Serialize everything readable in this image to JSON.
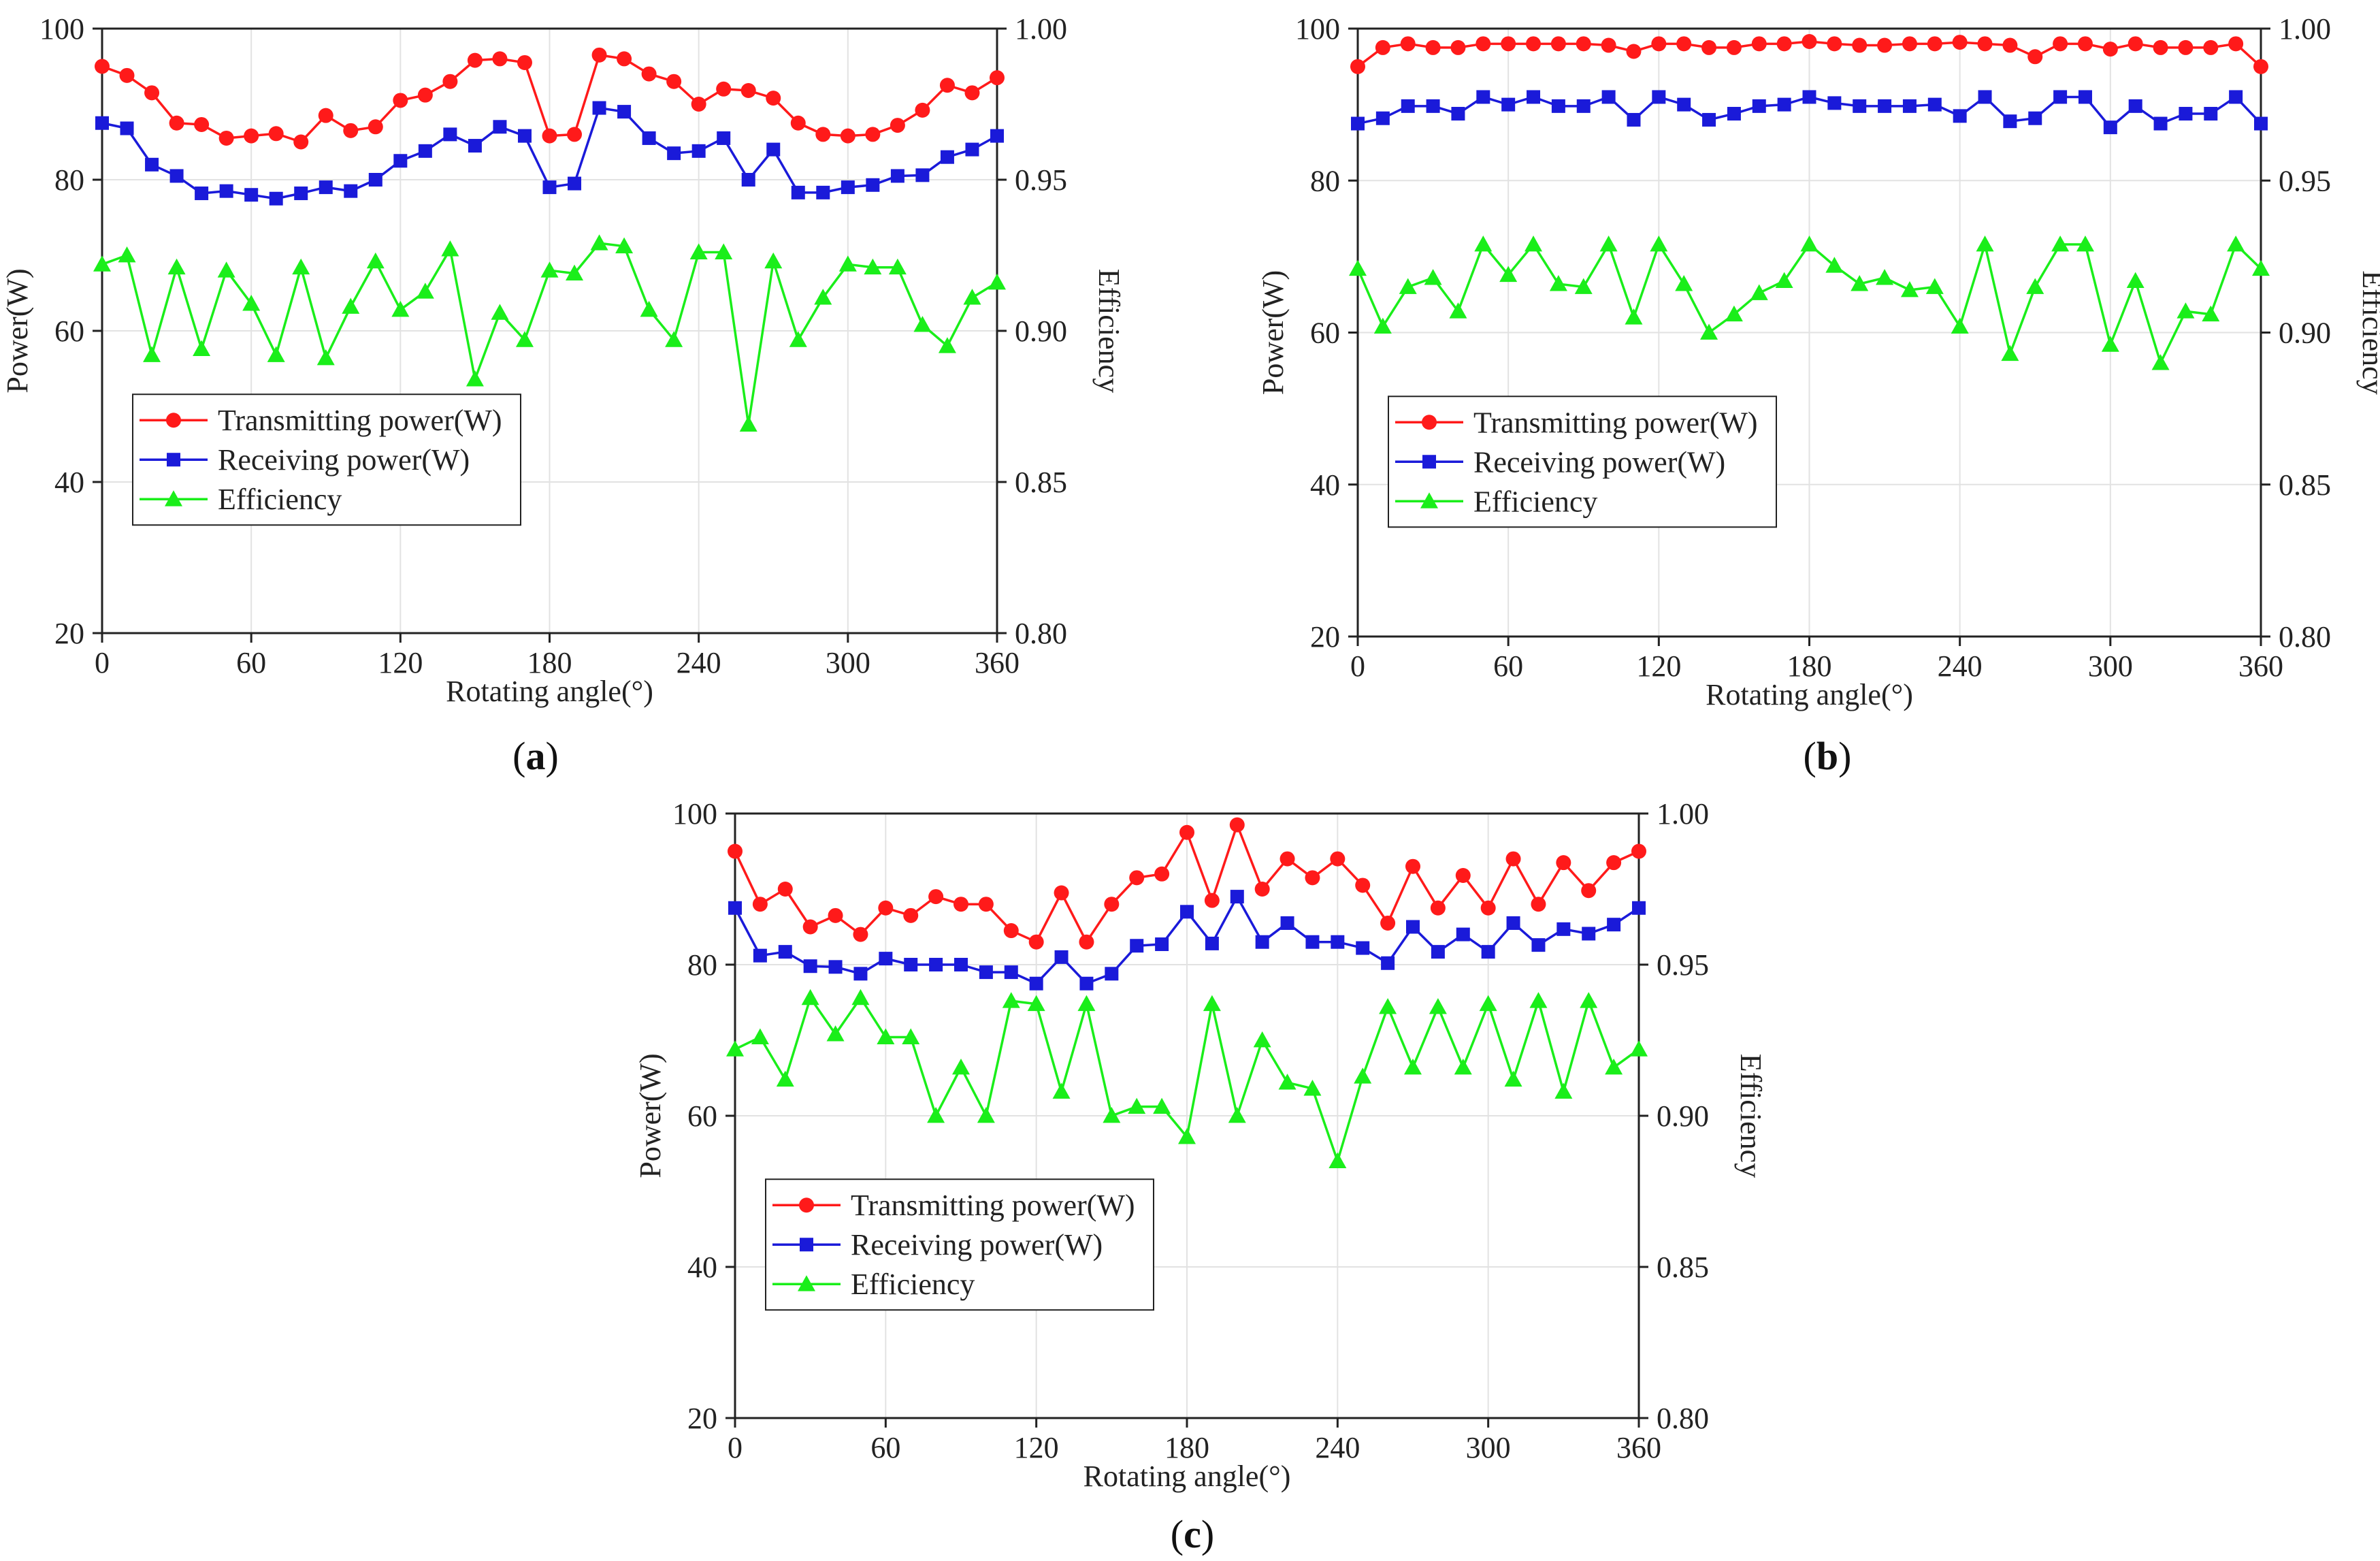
{
  "figure": {
    "panel_labels": [
      {
        "open": "(",
        "letter": "a",
        "close": ")"
      },
      {
        "open": "(",
        "letter": "b",
        "close": ")"
      },
      {
        "open": "(",
        "letter": "c",
        "close": ")"
      }
    ]
  },
  "colors": {
    "transmit": "#ff1a1a",
    "receive": "#1a1ad9",
    "efficiency": "#1aee1a",
    "axis": "#222222",
    "grid": "#e2e2e2"
  },
  "chart_data": [
    {
      "type": "line",
      "panel": "a",
      "xlabel": "Rotating angle(°)",
      "ylabel": "Power(W)",
      "y2label": "Efficiency",
      "xlim": [
        0,
        360
      ],
      "ylim": [
        20,
        100
      ],
      "y2lim": [
        0.8,
        1.0
      ],
      "xticks": [
        "0",
        "60",
        "120",
        "180",
        "240",
        "300",
        "360"
      ],
      "yticks": [
        "20",
        "40",
        "60",
        "80",
        "100"
      ],
      "y2ticks": [
        "0.80",
        "0.85",
        "0.90",
        "0.95",
        "1.00"
      ],
      "grid": true,
      "legend": [
        "Transmitting power(W)",
        "Receiving power(W)",
        "Efficiency"
      ],
      "x": [
        0,
        10,
        20,
        30,
        40,
        50,
        60,
        70,
        80,
        90,
        100,
        110,
        120,
        130,
        140,
        150,
        160,
        170,
        180,
        190,
        200,
        210,
        220,
        230,
        240,
        250,
        260,
        270,
        280,
        290,
        300,
        310,
        320,
        330,
        340,
        350,
        360
      ],
      "series": [
        {
          "name": "Transmitting power(W)",
          "axis": "left",
          "marker": "circle",
          "values": [
            95,
            93.8,
            91.5,
            87.5,
            87.3,
            85.5,
            85.8,
            86.1,
            85,
            88.5,
            86.5,
            87,
            90.5,
            91.2,
            93,
            95.8,
            96,
            95.5,
            85.8,
            86,
            96.5,
            96,
            94,
            93,
            90,
            92,
            91.8,
            90.8,
            87.5,
            86,
            85.8,
            86,
            87.2,
            89.2,
            92.5,
            91.5,
            93.5
          ]
        },
        {
          "name": "Receiving power(W)",
          "axis": "left",
          "marker": "square",
          "values": [
            87.5,
            86.8,
            82,
            80.5,
            78.2,
            78.5,
            78,
            77.5,
            78.2,
            79,
            78.5,
            80,
            82.5,
            83.8,
            86,
            84.5,
            87,
            85.8,
            79,
            79.5,
            89.5,
            89,
            85.5,
            83.5,
            83.8,
            85.5,
            80,
            84,
            78.3,
            78.3,
            79,
            79.3,
            80.5,
            80.6,
            83,
            84,
            85.8
          ]
        },
        {
          "name": "Efficiency",
          "axis": "right",
          "marker": "triangle",
          "values": [
            0.922,
            0.925,
            0.892,
            0.921,
            0.894,
            0.92,
            0.909,
            0.892,
            0.921,
            0.891,
            0.908,
            0.923,
            0.907,
            0.913,
            0.927,
            0.884,
            0.906,
            0.897,
            0.92,
            0.919,
            0.929,
            0.928,
            0.907,
            0.897,
            0.926,
            0.926,
            0.869,
            0.923,
            0.897,
            0.911,
            0.922,
            0.921,
            0.921,
            0.902,
            0.895,
            0.911,
            0.916
          ]
        }
      ]
    },
    {
      "type": "line",
      "panel": "b",
      "xlabel": "Rotating angle(°)",
      "ylabel": "Power(W)",
      "y2label": "Efficiency",
      "xlim": [
        0,
        360
      ],
      "ylim": [
        20,
        100
      ],
      "y2lim": [
        0.8,
        1.0
      ],
      "xticks": [
        "0",
        "60",
        "120",
        "180",
        "240",
        "300",
        "360"
      ],
      "yticks": [
        "20",
        "40",
        "60",
        "80",
        "100"
      ],
      "y2ticks": [
        "0.80",
        "0.85",
        "0.90",
        "0.95",
        "1.00"
      ],
      "grid": true,
      "legend": [
        "Transmitting power(W)",
        "Receiving power(W)",
        "Efficiency"
      ],
      "x": [
        0,
        10,
        20,
        30,
        40,
        50,
        60,
        70,
        80,
        90,
        100,
        110,
        120,
        130,
        140,
        150,
        160,
        170,
        180,
        190,
        200,
        210,
        220,
        230,
        240,
        250,
        260,
        270,
        280,
        290,
        300,
        310,
        320,
        330,
        340,
        350,
        360
      ],
      "series": [
        {
          "name": "Transmitting power(W)",
          "axis": "left",
          "marker": "circle",
          "values": [
            95,
            97.5,
            98,
            97.5,
            97.5,
            98,
            98,
            98,
            98,
            98,
            97.8,
            97,
            98,
            98,
            97.5,
            97.5,
            98,
            98,
            98.3,
            98,
            97.8,
            97.8,
            98,
            98,
            98.2,
            98,
            97.8,
            96.3,
            98,
            98,
            97.3,
            98,
            97.5,
            97.5,
            97.5,
            98,
            95
          ]
        },
        {
          "name": "Receiving power(W)",
          "axis": "left",
          "marker": "square",
          "values": [
            87.5,
            88.2,
            89.8,
            89.8,
            88.8,
            91,
            90,
            91,
            89.8,
            89.8,
            91,
            88,
            91,
            90,
            88,
            88.8,
            89.8,
            90,
            91,
            90.2,
            89.8,
            89.8,
            89.8,
            90,
            88.5,
            91,
            87.8,
            88.2,
            91,
            91,
            87,
            89.8,
            87.5,
            88.8,
            88.8,
            91,
            87.5
          ]
        },
        {
          "name": "Efficiency",
          "axis": "right",
          "marker": "triangle",
          "values": [
            0.921,
            0.902,
            0.915,
            0.918,
            0.907,
            0.929,
            0.919,
            0.929,
            0.916,
            0.915,
            0.929,
            0.905,
            0.929,
            0.916,
            0.9,
            0.906,
            0.913,
            0.917,
            0.929,
            0.922,
            0.916,
            0.918,
            0.914,
            0.915,
            0.902,
            0.929,
            0.893,
            0.915,
            0.929,
            0.929,
            0.896,
            0.917,
            0.89,
            0.907,
            0.906,
            0.929,
            0.921
          ]
        }
      ]
    },
    {
      "type": "line",
      "panel": "c",
      "xlabel": "Rotating angle(°)",
      "ylabel": "Power(W)",
      "y2label": "Efficiency",
      "xlim": [
        0,
        360
      ],
      "ylim": [
        20,
        100
      ],
      "y2lim": [
        0.8,
        1.0
      ],
      "xticks": [
        "0",
        "60",
        "120",
        "180",
        "240",
        "300",
        "360"
      ],
      "yticks": [
        "20",
        "40",
        "60",
        "80",
        "100"
      ],
      "y2ticks": [
        "0.80",
        "0.85",
        "0.90",
        "0.95",
        "1.00"
      ],
      "grid": true,
      "legend": [
        "Transmitting power(W)",
        "Receiving power(W)",
        "Efficiency"
      ],
      "x": [
        0,
        10,
        20,
        30,
        40,
        50,
        60,
        70,
        80,
        90,
        100,
        110,
        120,
        130,
        140,
        150,
        160,
        170,
        180,
        190,
        200,
        210,
        220,
        230,
        240,
        250,
        260,
        270,
        280,
        290,
        300,
        310,
        320,
        330,
        340,
        350,
        360
      ],
      "series": [
        {
          "name": "Transmitting power(W)",
          "axis": "left",
          "marker": "circle",
          "values": [
            95,
            88,
            90,
            85,
            86.5,
            84,
            87.5,
            86.5,
            89,
            88,
            88,
            84.5,
            83,
            89.5,
            83,
            88,
            91.5,
            92,
            97.5,
            88.5,
            98.5,
            90,
            94,
            91.5,
            94,
            90.5,
            85.5,
            93,
            87.5,
            91.8,
            87.5,
            94,
            88,
            93.5,
            89.8,
            93.5,
            95
          ]
        },
        {
          "name": "Receiving power(W)",
          "axis": "left",
          "marker": "square",
          "values": [
            87.5,
            81.2,
            81.7,
            79.8,
            79.7,
            78.8,
            80.8,
            80,
            80,
            80,
            79,
            79,
            77.5,
            81,
            77.5,
            78.8,
            82.5,
            82.7,
            87,
            82.8,
            89,
            83,
            85.5,
            83,
            83,
            82.2,
            80.2,
            85,
            81.7,
            84,
            81.7,
            85.5,
            82.6,
            84.7,
            84.1,
            85.3,
            87.5
          ]
        },
        {
          "name": "Efficiency",
          "axis": "right",
          "marker": "triangle",
          "values": [
            0.922,
            0.926,
            0.912,
            0.939,
            0.927,
            0.939,
            0.926,
            0.926,
            0.9,
            0.916,
            0.9,
            0.938,
            0.937,
            0.908,
            0.937,
            0.9,
            0.903,
            0.903,
            0.893,
            0.937,
            0.9,
            0.925,
            0.911,
            0.909,
            0.885,
            0.913,
            0.936,
            0.916,
            0.936,
            0.916,
            0.937,
            0.912,
            0.938,
            0.908,
            0.938,
            0.916,
            0.922
          ]
        }
      ]
    }
  ]
}
